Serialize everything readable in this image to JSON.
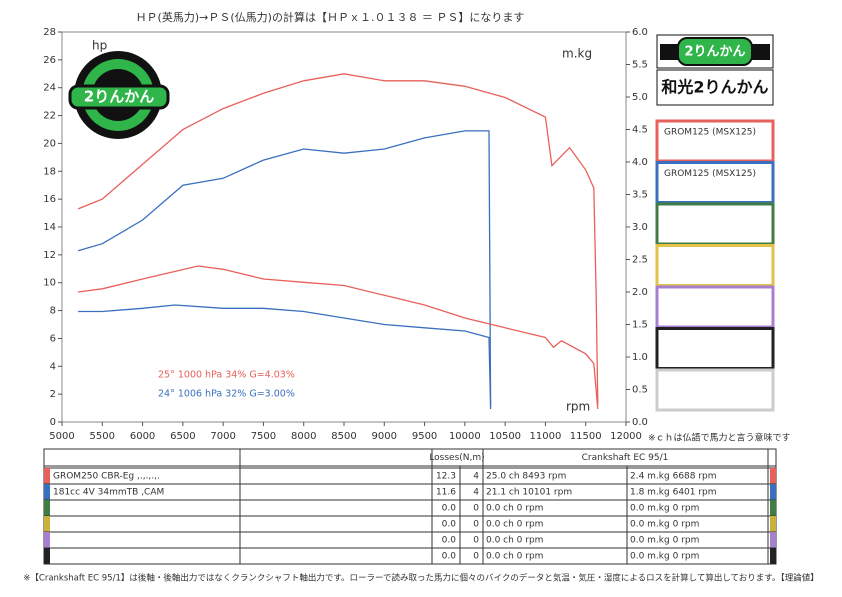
{
  "header": {
    "title": "ＨＰ(英馬力)→ＰＳ(仏馬力)の計算は【ＨＰｘ１.０１３８ ＝ ＰＳ】になります"
  },
  "chart_data": {
    "type": "line",
    "y_label": "hp",
    "y2_label": "m.kg",
    "x_label": "rpm",
    "xlim": [
      5000,
      12000
    ],
    "xticks": [
      5000,
      5500,
      6000,
      6500,
      7000,
      7500,
      8000,
      8500,
      9000,
      9500,
      10000,
      10500,
      11000,
      11500,
      12000
    ],
    "ylim": [
      0,
      28
    ],
    "yticks": [
      0,
      2,
      4,
      6,
      8,
      10,
      12,
      14,
      16,
      18,
      20,
      22,
      24,
      26,
      28
    ],
    "y2lim": [
      0,
      6
    ],
    "y2ticks": [
      {
        "value": 0,
        "label": "0.0"
      },
      {
        "value": 0.5,
        "label": "0.5"
      },
      {
        "value": 1,
        "label": "1.0"
      },
      {
        "value": 1.5,
        "label": "1.5"
      },
      {
        "value": 2,
        "label": "2.0"
      },
      {
        "value": 2.5,
        "label": "2.5"
      },
      {
        "value": 3,
        "label": "3.0"
      },
      {
        "value": 3.5,
        "label": "3.5"
      },
      {
        "value": 4,
        "label": "4.0"
      },
      {
        "value": 4.5,
        "label": "4.5"
      },
      {
        "value": 5,
        "label": "5.0"
      },
      {
        "value": 5.5,
        "label": "5.5"
      },
      {
        "value": 6,
        "label": "6.0"
      }
    ],
    "series": [
      {
        "color": "#e8605a",
        "x": [
          5200,
          5500,
          6000,
          6500,
          7000,
          7500,
          8000,
          8500,
          9000,
          9500,
          10000,
          10500,
          11000,
          11080,
          11300,
          11500,
          11600,
          11630,
          11650
        ],
        "values": [
          15.3,
          16,
          18.5,
          21,
          22.5,
          23.6,
          24.5,
          25,
          24.5,
          24.5,
          24.1,
          23.3,
          21.9,
          18.4,
          19.7,
          18.1,
          16.8,
          9,
          1.2
        ]
      },
      {
        "color": "#3a6fc0",
        "x": [
          5200,
          5500,
          6000,
          6500,
          7000,
          7500,
          8000,
          8500,
          9000,
          9500,
          10000,
          10300,
          10320
        ],
        "values": [
          12.3,
          12.8,
          14.5,
          17,
          17.5,
          18.8,
          19.6,
          19.3,
          19.6,
          20.4,
          20.9,
          20.9,
          1.2
        ]
      },
      {
        "color": "#e8605a",
        "axis": "y2",
        "x": [
          5200,
          5500,
          6000,
          6688,
          7000,
          7500,
          8000,
          8500,
          9000,
          9500,
          10000,
          10500,
          11000,
          11100,
          11200,
          11500,
          11600,
          11650
        ],
        "values": [
          2.0,
          2.05,
          2.2,
          2.4,
          2.35,
          2.2,
          2.15,
          2.1,
          1.95,
          1.8,
          1.6,
          1.45,
          1.3,
          1.15,
          1.25,
          1.05,
          0.9,
          0.2
        ]
      },
      {
        "color": "#3a6fc0",
        "axis": "y2",
        "x": [
          5200,
          5500,
          6000,
          6401,
          7000,
          7500,
          8000,
          8500,
          9000,
          9500,
          10000,
          10300,
          10320
        ],
        "values": [
          1.7,
          1.7,
          1.75,
          1.8,
          1.75,
          1.75,
          1.7,
          1.6,
          1.5,
          1.45,
          1.4,
          1.3,
          0.2
        ]
      }
    ],
    "annotations": [
      {
        "text": "25°  1000 hPa  34%    G=4.03%",
        "color": "#e8605a"
      },
      {
        "text": "24°  1006 hPa  32%    G=3.00%",
        "color": "#3a6fc0"
      }
    ],
    "note": "※ｃｈは仏語で馬力と言う意味です"
  },
  "logo": {
    "badge": "2りんかん",
    "shop": "和光2りんかん"
  },
  "legend": [
    {
      "label": "GROM125 (MSX125)",
      "color": "#e8605a"
    },
    {
      "label": "GROM125 (MSX125)",
      "color": "#3a6fc0"
    },
    {
      "color": "#3f7d45"
    },
    {
      "color": "#e3c24a"
    },
    {
      "color": "#a77fcf"
    },
    {
      "color": "#222222"
    },
    {
      "color": "#cccccc"
    }
  ],
  "table": {
    "header": [
      "Losses(N,m)",
      "Crankshaft EC 95/1"
    ],
    "row_colors": [
      "#e8605a",
      "#3a6fc0",
      "#3f7d45",
      "#c9b23a",
      "#a77fcf",
      "#222222"
    ],
    "rows": [
      [
        "GROM250 CBR-Eg ,.,.,.,.",
        "12.3",
        "4",
        "25.0 ch 8493 rpm",
        "2.4 m.kg 6688 rpm"
      ],
      [
        "181cc 4V 34mmTB ,CAM",
        "11.6",
        "4",
        "21.1 ch 10101 rpm",
        "1.8 m.kg 6401 rpm"
      ],
      [
        null,
        "0.0",
        "0",
        "0.0 ch 0 rpm",
        "0.0 m.kg 0 rpm"
      ],
      [
        null,
        "0.0",
        "0",
        "0.0 ch 0 rpm",
        "0.0 m.kg 0 rpm"
      ],
      [
        null,
        "0.0",
        "0",
        "0.0 ch 0 rpm",
        "0.0 m.kg 0 rpm"
      ],
      [
        null,
        "0.0",
        "0",
        "0.0 ch 0 rpm",
        "0.0 m.kg 0 rpm"
      ]
    ]
  },
  "footer": "※【Crankshaft EC 95/1】は後軸・後軸出力ではなくクランクシャフト軸出力です。ローラーで読み取った馬力に個々のバイクのデータと気温・気圧・湿度によるロスを計算して算出しております。【理論値】"
}
